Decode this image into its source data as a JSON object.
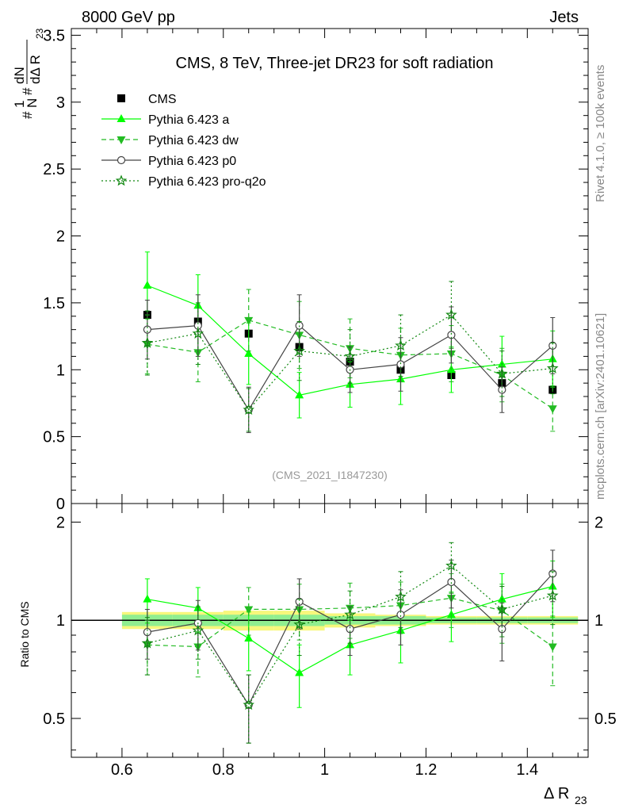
{
  "header": {
    "left_label": "8000 GeV pp",
    "right_label": "Jets"
  },
  "side_labels": {
    "rivet": "Rivet 4.1.0, ≥ 100k events",
    "mcplots": "mcplots.cern.ch [arXiv:2401.10621]"
  },
  "chart_data": [
    {
      "type": "scatter",
      "panel": "main",
      "title": "CMS, 8 TeV, Three-jet DR23 for soft radiation",
      "analysis_tag": "(CMS_2021_I1847230)",
      "ylabel": {
        "main": "#frac{1}{N}",
        "den_prefix": "#",
        "den_core": "dN",
        "den_delta": "dΔ R",
        "sub": "23"
      },
      "xlim": [
        0.5,
        1.52
      ],
      "ylim": [
        0,
        3.55
      ],
      "yticks": [
        0,
        0.5,
        1,
        1.5,
        2,
        2.5,
        3,
        3.5
      ],
      "ytick_labels": [
        "0",
        "0.5",
        "1",
        "1.5",
        "2",
        "2.5",
        "3",
        "3.5"
      ],
      "x": [
        0.65,
        0.75,
        0.85,
        0.95,
        1.05,
        1.15,
        1.25,
        1.35,
        1.45
      ],
      "series": [
        {
          "name": "CMS",
          "color": "#000000",
          "marker": "square",
          "line": "none",
          "values": [
            1.41,
            1.36,
            1.27,
            1.17,
            1.06,
            1.0,
            0.96,
            0.9,
            0.85
          ],
          "errors": [
            0.02,
            0.02,
            0.02,
            0.02,
            0.02,
            0.02,
            0.02,
            0.02,
            0.02
          ]
        },
        {
          "name": "Pythia 6.423 a",
          "color": "#00ff00",
          "marker": "triangle-up",
          "line": "solid",
          "values": [
            1.63,
            1.48,
            1.12,
            0.81,
            0.89,
            0.93,
            1.0,
            1.04,
            1.08
          ],
          "errors": [
            0.25,
            0.23,
            0.23,
            0.17,
            0.17,
            0.19,
            0.17,
            0.21,
            0.21
          ]
        },
        {
          "name": "Pythia 6.423 dw",
          "color": "#22bb22",
          "marker": "triangle-down",
          "line": "dashed",
          "values": [
            1.19,
            1.13,
            1.37,
            1.26,
            1.16,
            1.11,
            1.12,
            0.96,
            0.71
          ],
          "errors": [
            0.22,
            0.22,
            0.23,
            0.25,
            0.22,
            0.2,
            0.21,
            0.2,
            0.17
          ]
        },
        {
          "name": "Pythia 6.423 p0",
          "color": "#444444",
          "marker": "circle-open",
          "line": "solid",
          "values": [
            1.3,
            1.33,
            0.7,
            1.33,
            1.0,
            1.04,
            1.26,
            0.85,
            1.18
          ],
          "errors": [
            0.22,
            0.23,
            0.17,
            0.23,
            0.17,
            0.2,
            0.21,
            0.17,
            0.21
          ]
        },
        {
          "name": "Pythia 6.423 pro-q2o",
          "color": "#118811",
          "marker": "star-open",
          "line": "dotted",
          "values": [
            1.2,
            1.27,
            0.7,
            1.14,
            1.1,
            1.18,
            1.41,
            0.97,
            1.01
          ],
          "errors": [
            0.24,
            0.23,
            0.16,
            0.22,
            0.2,
            0.23,
            0.25,
            0.17,
            0.19
          ]
        }
      ]
    },
    {
      "type": "scatter",
      "panel": "ratio",
      "xlabel": {
        "main": "Δ R",
        "sub": "23"
      },
      "ylabel": "Ratio to CMS",
      "xlim": [
        0.5,
        1.52
      ],
      "ylim": [
        0.38,
        2.28
      ],
      "yticks": [
        0.5,
        1,
        2
      ],
      "ytick_labels": [
        "0.5",
        "1",
        "2"
      ],
      "xticks": [
        0.6,
        0.8,
        1,
        1.2,
        1.4
      ],
      "xtick_labels": [
        "0.6",
        "0.8",
        "1",
        "1.2",
        "1.4"
      ],
      "band": {
        "inner_color": "#90ee90",
        "outer_color": "#f7f77c",
        "inner": [
          0.04,
          0.04,
          0.04,
          0.04,
          0.03,
          0.03,
          0.02,
          0.02,
          0.02
        ],
        "outer": [
          0.06,
          0.06,
          0.07,
          0.07,
          0.05,
          0.04,
          0.03,
          0.03,
          0.03
        ]
      },
      "series": [
        {
          "name": "Pythia 6.423 a",
          "values": [
            1.16,
            1.09,
            0.88,
            0.69,
            0.84,
            0.93,
            1.04,
            1.16,
            1.27
          ],
          "errors": [
            0.18,
            0.17,
            0.18,
            0.15,
            0.16,
            0.19,
            0.18,
            0.23,
            0.25
          ]
        },
        {
          "name": "Pythia 6.423 dw",
          "values": [
            0.84,
            0.83,
            1.08,
            1.08,
            1.09,
            1.11,
            1.17,
            1.07,
            0.83
          ],
          "errors": [
            0.16,
            0.16,
            0.18,
            0.21,
            0.21,
            0.2,
            0.22,
            0.22,
            0.2
          ]
        },
        {
          "name": "Pythia 6.423 p0",
          "values": [
            0.92,
            0.98,
            0.55,
            1.14,
            0.94,
            1.04,
            1.31,
            0.94,
            1.39
          ],
          "errors": [
            0.16,
            0.17,
            0.13,
            0.2,
            0.16,
            0.2,
            0.22,
            0.19,
            0.25
          ]
        },
        {
          "name": "Pythia 6.423 pro-q2o",
          "values": [
            0.85,
            0.93,
            0.55,
            0.97,
            1.04,
            1.18,
            1.47,
            1.08,
            1.19
          ],
          "errors": [
            0.17,
            0.17,
            0.13,
            0.19,
            0.19,
            0.23,
            0.26,
            0.19,
            0.22
          ]
        }
      ]
    }
  ]
}
